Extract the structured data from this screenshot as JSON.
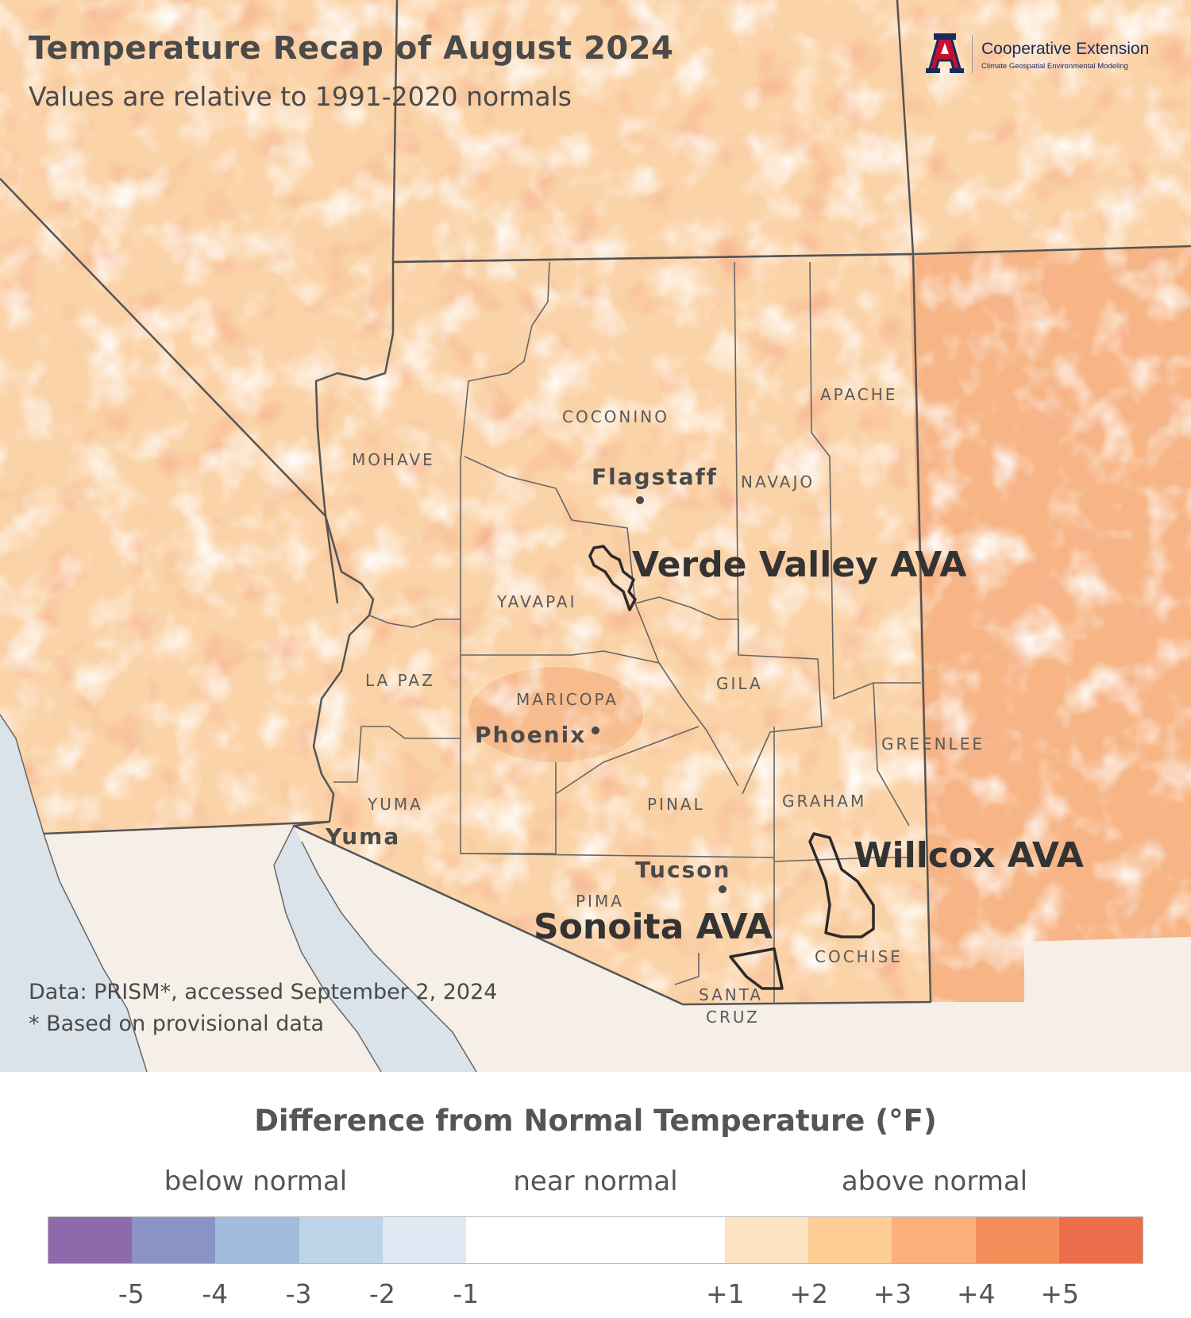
{
  "header": {
    "title": "Temperature Recap of August 2024",
    "subtitle": "Values are relative to 1991-2020 normals"
  },
  "logo": {
    "org": "Cooperative Extension",
    "program": "Climate Geospatial Environmental Modeling",
    "mark": "A",
    "colors": {
      "red": "#c8102e",
      "navy": "#1a2a5e"
    }
  },
  "counties": [
    "MOHAVE",
    "COCONINO",
    "NAVAJO",
    "APACHE",
    "YAVAPAI",
    "LA PAZ",
    "MARICOPA",
    "GILA",
    "GREENLEE",
    "YUMA",
    "PINAL",
    "GRAHAM",
    "PIMA",
    "COCHISE",
    "SANTA",
    "CRUZ"
  ],
  "cities": [
    "Flagstaff",
    "Phoenix",
    "Yuma",
    "Tucson"
  ],
  "avas": [
    "Verde Valley AVA",
    "Willcox AVA",
    "Sonoita AVA"
  ],
  "credits": {
    "line1": "Data: PRISM*, accessed September 2, 2024",
    "line2": "* Based on provisional data"
  },
  "legend": {
    "title": "Difference from Normal Temperature (°F)",
    "categories": [
      "below normal",
      "near normal",
      "above normal"
    ],
    "ticks": [
      "-5",
      "-4",
      "-3",
      "-2",
      "-1",
      "+1",
      "+2",
      "+3",
      "+4",
      "+5"
    ],
    "colors": [
      "#8e6aad",
      "#8b93c6",
      "#a1bcdc",
      "#bfd4e9",
      "#dee9f4",
      "#ffffff",
      "#fde3c3",
      "#fdcd95",
      "#fbb07a",
      "#f38e5b",
      "#ec6d4c"
    ]
  },
  "map_colors": {
    "land_base": "#fbd8b4",
    "mexico": "#f5efe8",
    "ocean": "#dbe3ea",
    "border": "#555555",
    "ava_outline": "#2b2b2b"
  }
}
